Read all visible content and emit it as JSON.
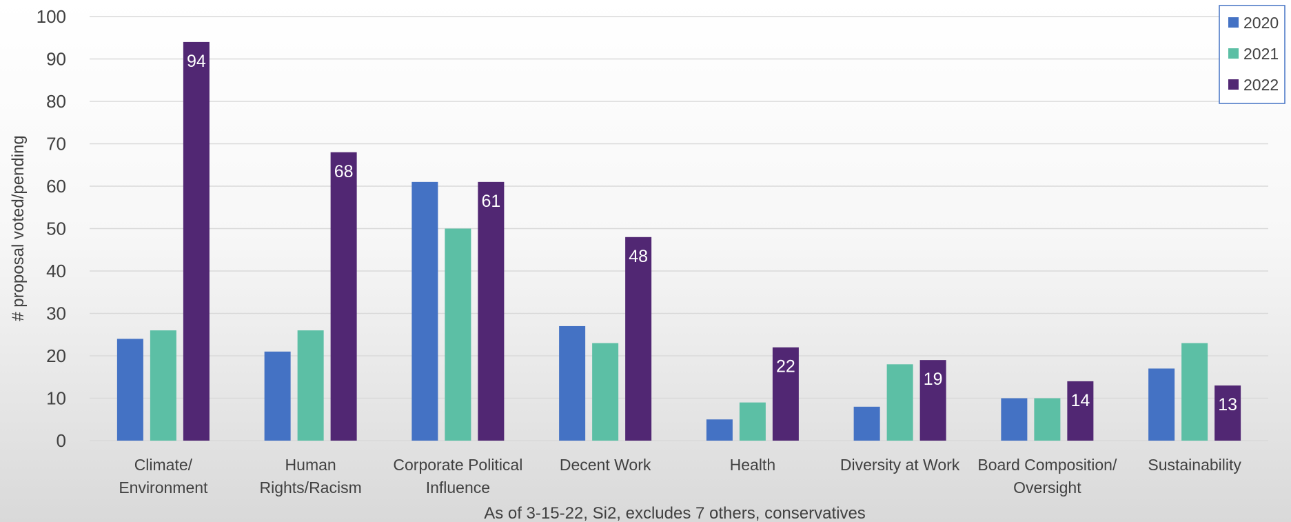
{
  "chart_data": {
    "type": "bar",
    "categories": [
      [
        "Climate/",
        "Environment"
      ],
      [
        "Human",
        "Rights/Racism"
      ],
      [
        "Corporate Political",
        "Influence"
      ],
      [
        "Decent Work"
      ],
      [
        "Health"
      ],
      [
        "Diversity at Work"
      ],
      [
        "Board Composition/",
        "Oversight"
      ],
      [
        "Sustainability"
      ]
    ],
    "series": [
      {
        "name": "2020",
        "values": [
          24,
          21,
          61,
          27,
          5,
          8,
          10,
          17
        ],
        "color": "#4472c4"
      },
      {
        "name": "2021",
        "values": [
          26,
          26,
          50,
          23,
          9,
          18,
          10,
          23
        ],
        "color": "#5cbfa5"
      },
      {
        "name": "2022",
        "values": [
          94,
          68,
          61,
          48,
          22,
          19,
          14,
          13
        ],
        "color": "#512773"
      }
    ],
    "data_labels_series": "2022",
    "ylabel": "# proposal voted/pending",
    "xlabel": "As of 3-15-22, Si2, excludes 7 others, conservatives",
    "ylim": [
      0,
      100
    ],
    "yticks": [
      0,
      10,
      20,
      30,
      40,
      50,
      60,
      70,
      80,
      90,
      100
    ],
    "grid": true,
    "legend_position": "top-right",
    "legend_border_color": "#4472c4",
    "gridline_color": "#d9d9d9"
  }
}
